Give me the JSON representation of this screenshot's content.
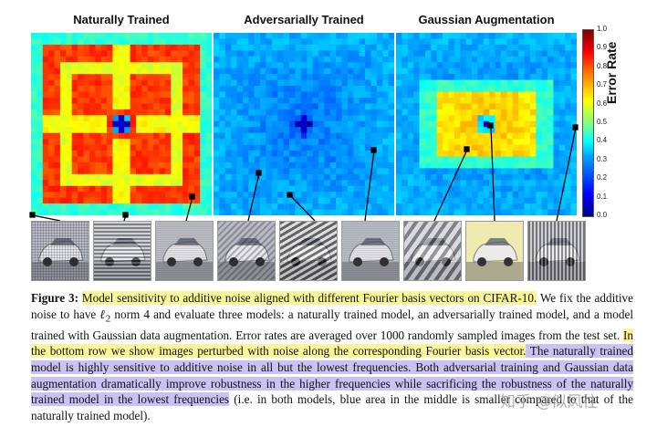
{
  "figure": {
    "panels": [
      {
        "title": "Naturally Trained",
        "kind": "natural"
      },
      {
        "title": "Adversarially Trained",
        "kind": "adversarial"
      },
      {
        "title": "Gaussian Augmentation",
        "kind": "gaussian"
      }
    ],
    "colorbar": {
      "label": "Error Rate",
      "ticks": [
        "1.0",
        "0.9",
        "0.8",
        "0.7",
        "0.6",
        "0.5",
        "0.4",
        "0.3",
        "0.2",
        "0.1",
        "0.0"
      ]
    },
    "thumbnails": [
      {
        "tint": "#b9bcc8",
        "pattern": "grid"
      },
      {
        "tint": "#c4c6cc",
        "pattern": "hstripe"
      },
      {
        "tint": "#c0c2c8",
        "pattern": "fine"
      },
      {
        "tint": "#b7bac4",
        "pattern": "diag"
      },
      {
        "tint": "#c8c9cc",
        "pattern": "diag-strong"
      },
      {
        "tint": "#bcc0c8",
        "pattern": "fine"
      },
      {
        "tint": "#c5c6ce",
        "pattern": "diag-wide"
      },
      {
        "tint": "#efeab0",
        "pattern": "none"
      },
      {
        "tint": "#c0c2c8",
        "pattern": "vstripe"
      }
    ]
  },
  "caption": {
    "label": "Figure 3:",
    "s1_highlight": "Model sensitivity to additive noise aligned with different Fourier basis vectors on CIFAR-10.",
    "s2_before": " We fix the additive noise to have ",
    "norm_symbol": "ℓ",
    "norm_sub": "2",
    "s2_after": " norm 4 and evaluate three models: a naturally trained model, an adversarially trained model, and a model trained with Gaussian data augmentation. Error rates are averaged over 1000 randomly sampled images from the test set. ",
    "s3_highlight": "In the bottom row we show images perturbed with noise along the corresponding Fourier basis vector.",
    "s4_highlight": " The naturally trained model is highly sensitive to additive noise in all but the lowest frequencies.",
    "s5_highlight": " Both adversarial training and Gaussian data augmentation dramatically improve robustness in the higher frequencies while sacrificing the robustness of the naturally trained model in the lowest frequencies",
    "s6": " (i.e. in both models, blue area in the middle is smaller compared to that of the naturally trained model)."
  },
  "watermark": "知乎 @似风往"
}
